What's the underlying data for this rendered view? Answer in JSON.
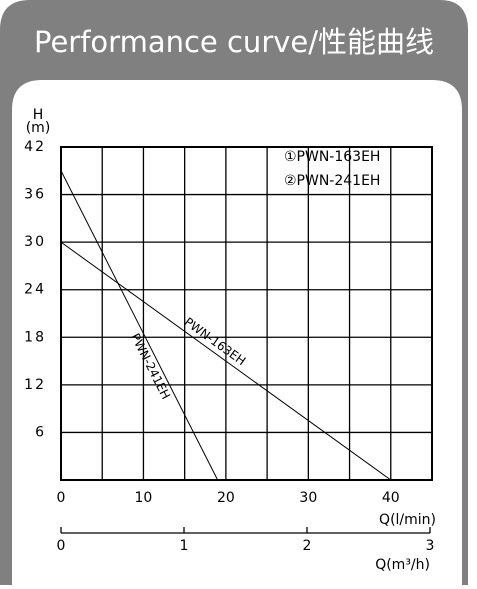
{
  "chart_data": {
    "type": "line",
    "title": "Performance curve/性能曲线",
    "y_label_top": "H",
    "y_label_unit": "(m)",
    "x_label": "Q(l/min)",
    "x2_label": "Q(m³/h)",
    "legend": [
      "①PWN-163EH",
      "②PWN-241EH"
    ],
    "series": [
      {
        "name": "PWN-163EH",
        "color": "#000000",
        "x": [
          0,
          40
        ],
        "values": [
          30,
          0
        ]
      },
      {
        "name": "PWN-241EH",
        "color": "#000000",
        "x": [
          0,
          19
        ],
        "values": [
          39,
          0
        ]
      }
    ],
    "xlim": [
      0,
      45
    ],
    "xticks": [
      0,
      10,
      20,
      30,
      40
    ],
    "xminor": [
      5,
      15,
      25,
      35
    ],
    "ylim": [
      0,
      42
    ],
    "yticks": [
      6,
      12,
      18,
      24,
      30,
      36,
      42
    ],
    "x2lim": [
      0,
      3
    ],
    "x2ticks": [
      0,
      1,
      2,
      3
    ],
    "grid": true
  }
}
